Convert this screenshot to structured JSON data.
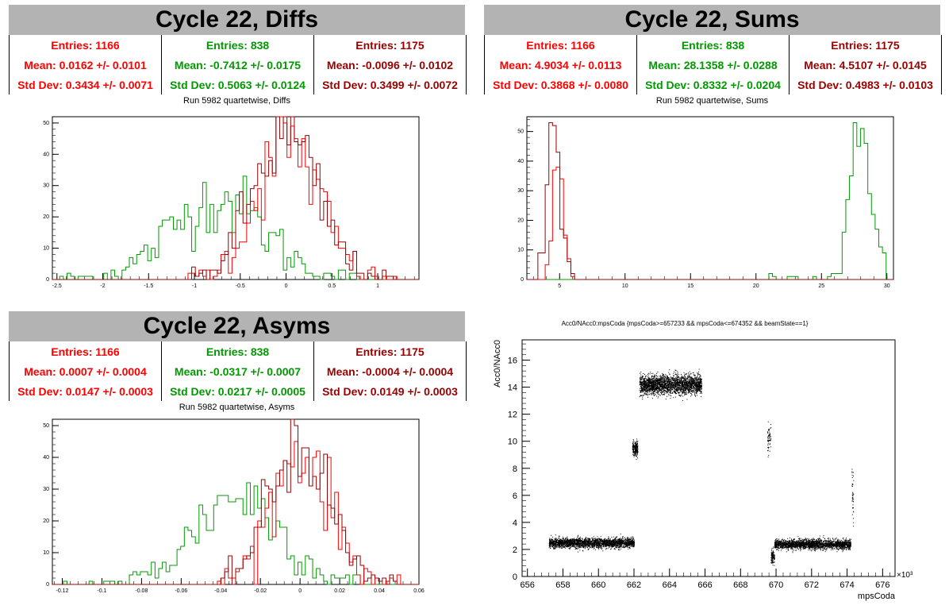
{
  "colors": {
    "red": "#ff0000",
    "green": "#009900",
    "darkred": "#990000",
    "gray": "#b3b3b3"
  },
  "diffs": {
    "title": "Cycle 22, Diffs",
    "stats": [
      {
        "color": "#ff0000",
        "entries": "Entries: 1166",
        "mean": "Mean: 0.0162 +/- 0.0101",
        "std": "Std Dev: 0.3434 +/- 0.0071"
      },
      {
        "color": "#009900",
        "entries": "Entries: 838",
        "mean": "Mean: -0.7412 +/- 0.0175",
        "std": "Std Dev: 0.5063 +/- 0.0124"
      },
      {
        "color": "#990000",
        "entries": "Entries: 1175",
        "mean": "Mean: -0.0096 +/- 0.0102",
        "std": "Std Dev: 0.3499 +/- 0.0072"
      }
    ],
    "subtitle": "Run 5982 quartetwise, Diffs"
  },
  "sums": {
    "title": "Cycle 22, Sums",
    "stats": [
      {
        "color": "#ff0000",
        "entries": "Entries: 1166",
        "mean": "Mean: 4.9034 +/- 0.0113",
        "std": "Std Dev: 0.3868 +/- 0.0080"
      },
      {
        "color": "#009900",
        "entries": "Entries: 838",
        "mean": "Mean: 28.1358 +/- 0.0288",
        "std": "Std Dev: 0.8332 +/- 0.0204"
      },
      {
        "color": "#990000",
        "entries": "Entries: 1175",
        "mean": "Mean: 4.5107 +/- 0.0145",
        "std": "Std Dev: 0.4983 +/- 0.0103"
      }
    ],
    "subtitle": "Run 5982 quartetwise, Sums"
  },
  "asyms": {
    "title": "Cycle 22, Asyms",
    "stats": [
      {
        "color": "#ff0000",
        "entries": "Entries: 1166",
        "mean": "Mean: 0.0007 +/- 0.0004",
        "std": "Std Dev: 0.0147 +/- 0.0003"
      },
      {
        "color": "#009900",
        "entries": "Entries: 838",
        "mean": "Mean: -0.0317 +/- 0.0007",
        "std": "Std Dev: 0.0217 +/- 0.0005"
      },
      {
        "color": "#990000",
        "entries": "Entries: 1175",
        "mean": "Mean: -0.0004 +/- 0.0004",
        "std": "Std Dev: 0.0149 +/- 0.0003"
      }
    ],
    "subtitle": "Run 5982 quartetwise, Asyms"
  },
  "chart_data": [
    {
      "type": "histogram",
      "id": "diffs",
      "xlim": [
        -2.55,
        1.45
      ],
      "ylim": [
        0,
        52
      ],
      "xticks": [
        -2.5,
        -2,
        -1.5,
        -1,
        -0.5,
        0,
        0.5,
        1
      ],
      "xtick_labels": [
        "-2.5",
        "-2",
        "-1.5",
        "-1",
        "-0.5",
        "0",
        "0.5",
        "1"
      ],
      "yticks": [
        0,
        10,
        20,
        30,
        40,
        50
      ],
      "series": [
        {
          "color": "#009900",
          "mean": -0.7412,
          "sigma": 0.5063,
          "peak": 26,
          "range": [
            -2.5,
            0.9
          ]
        },
        {
          "color": "#ff0000",
          "mean": 0.0162,
          "sigma": 0.3434,
          "peak": 44,
          "range": [
            -1.1,
            1.2
          ]
        },
        {
          "color": "#990000",
          "mean": -0.0096,
          "sigma": 0.3499,
          "peak": 46,
          "range": [
            -1.1,
            1.3
          ]
        }
      ]
    },
    {
      "type": "histogram",
      "id": "sums",
      "xlim": [
        2.5,
        30.5
      ],
      "ylim": [
        0,
        55
      ],
      "xticks": [
        5,
        10,
        15,
        20,
        25,
        30
      ],
      "xtick_labels": [
        "5",
        "10",
        "15",
        "20",
        "25",
        "30"
      ],
      "yticks": [
        0,
        10,
        20,
        30,
        40,
        50
      ],
      "series": [
        {
          "color": "#009900",
          "mean": 28.1358,
          "sigma": 0.8332,
          "peak": 50,
          "range": [
            21,
            30
          ]
        },
        {
          "color": "#ff0000",
          "mean": 4.9034,
          "sigma": 0.3868,
          "peak": 40,
          "range": [
            3.5,
            6
          ]
        },
        {
          "color": "#990000",
          "mean": 4.5107,
          "sigma": 0.4983,
          "peak": 48,
          "range": [
            3,
            6
          ]
        }
      ]
    },
    {
      "type": "histogram",
      "id": "asyms",
      "xlim": [
        -0.125,
        0.06
      ],
      "ylim": [
        0,
        52
      ],
      "xticks": [
        -0.12,
        -0.1,
        -0.08,
        -0.06,
        -0.04,
        -0.02,
        0,
        0.02,
        0.04,
        0.06
      ],
      "xtick_labels": [
        "-0.12",
        "-0.1",
        "-0.08",
        "-0.06",
        "-0.04",
        "-0.02",
        "0",
        "0.02",
        "0.04",
        "0.06"
      ],
      "yticks": [
        0,
        10,
        20,
        30,
        40,
        50
      ],
      "series": [
        {
          "color": "#009900",
          "mean": -0.0317,
          "sigma": 0.0217,
          "peak": 28,
          "range": [
            -0.12,
            0.03
          ]
        },
        {
          "color": "#ff0000",
          "mean": 0.0007,
          "sigma": 0.0147,
          "peak": 42,
          "range": [
            -0.05,
            0.05
          ]
        },
        {
          "color": "#990000",
          "mean": -0.0004,
          "sigma": 0.0149,
          "peak": 45,
          "range": [
            -0.04,
            0.05
          ]
        }
      ]
    },
    {
      "type": "scatter",
      "id": "acc0",
      "title": "Acc0/NAcc0:mpsCoda {mpsCoda>=657233 && mpsCoda<=674352 && beamState==1}",
      "xlabel": "mpsCoda",
      "ylabel": "Acc0/NAcc0",
      "xexp": "×10³",
      "xlim": [
        655.7,
        676.7
      ],
      "ylim": [
        0,
        17.5
      ],
      "xticks": [
        656,
        658,
        660,
        662,
        664,
        666,
        668,
        670,
        672,
        674,
        676
      ],
      "yticks": [
        0,
        2,
        4,
        6,
        8,
        10,
        12,
        14,
        16
      ],
      "clusters": [
        {
          "x": [
            657.2,
            662.0
          ],
          "y": 2.5,
          "spread": 0.35,
          "n": 2600
        },
        {
          "x": [
            661.9,
            662.2
          ],
          "y": 9.5,
          "spread": 0.55,
          "n": 220
        },
        {
          "x": [
            662.3,
            665.8
          ],
          "y": 14.2,
          "spread": 0.7,
          "n": 2600
        },
        {
          "x": [
            669.5,
            669.7
          ],
          "y": 10.3,
          "spread": 1.1,
          "n": 60
        },
        {
          "x": [
            669.7,
            669.9
          ],
          "y": 1.5,
          "spread": 0.5,
          "n": 120
        },
        {
          "x": [
            669.9,
            674.2
          ],
          "y": 2.4,
          "spread": 0.35,
          "n": 2400
        },
        {
          "x": [
            674.25,
            674.35
          ],
          "y": 6.0,
          "spread": 2.0,
          "n": 40
        }
      ]
    }
  ]
}
